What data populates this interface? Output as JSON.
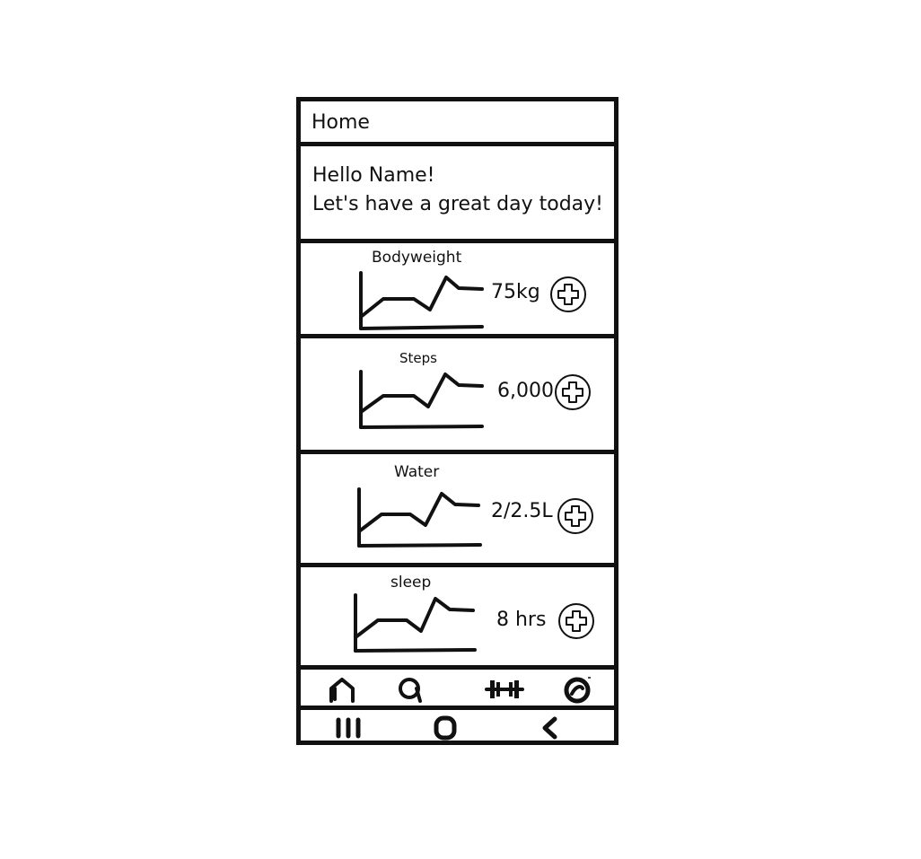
{
  "header": {
    "title": "Home"
  },
  "greeting": {
    "line1": "Hello Name!",
    "line2": "Let's have a great day today!"
  },
  "metrics": [
    {
      "id": "bodyweight",
      "title": "Bodyweight",
      "value": "75kg",
      "icon": "plus-circle-icon"
    },
    {
      "id": "steps",
      "title": "Steps",
      "value": "6,000",
      "icon": "plus-circle-icon"
    },
    {
      "id": "water",
      "title": "Water",
      "value": "2/2.5L",
      "icon": "plus-circle-icon"
    },
    {
      "id": "sleep",
      "title": "sleep",
      "value": "8 hrs",
      "icon": "plus-circle-icon"
    }
  ],
  "bottom_nav": {
    "items": [
      {
        "name": "home-icon"
      },
      {
        "name": "search-icon"
      },
      {
        "name": "dumbbell-icon"
      },
      {
        "name": "profile-icon"
      }
    ]
  },
  "system_bar": {
    "items": [
      {
        "name": "recent-apps-icon"
      },
      {
        "name": "home-button-icon"
      },
      {
        "name": "back-icon"
      }
    ]
  },
  "colors": {
    "ink": "#111111",
    "background": "#ffffff"
  }
}
